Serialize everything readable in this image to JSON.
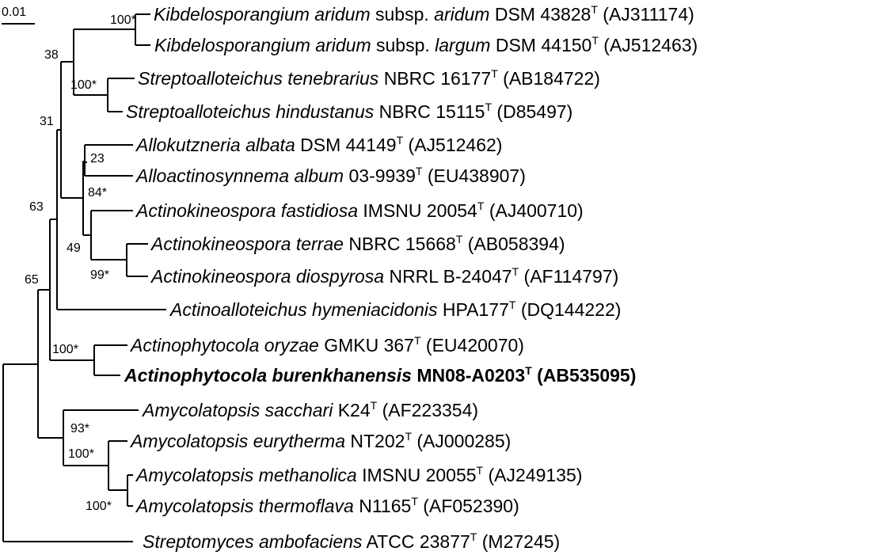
{
  "scale_bar": {
    "label": "0.01"
  },
  "taxa": [
    {
      "genus_species": "Kibdelosporangium aridum",
      "subsp_word": "subsp.",
      "subsp": "aridum",
      "strain": "DSM 43828",
      "type_mark": "T",
      "accession": "(AJ311174)",
      "bold": false
    },
    {
      "genus_species": "Kibdelosporangium aridum",
      "subsp_word": "subsp.",
      "subsp": "largum",
      "strain": "DSM 44150",
      "type_mark": "T",
      "accession": "(AJ512463)",
      "bold": false
    },
    {
      "genus_species": "Streptoalloteichus tenebrarius",
      "strain": "NBRC 16177",
      "type_mark": "T",
      "accession": "(AB184722)",
      "bold": false
    },
    {
      "genus_species": "Streptoalloteichus hindustanus",
      "strain": "NBRC 15115",
      "type_mark": "T",
      "accession": "(D85497)",
      "bold": false
    },
    {
      "genus_species": "Allokutzneria albata",
      "strain": "DSM 44149",
      "type_mark": "T",
      "accession": "(AJ512462)",
      "bold": false
    },
    {
      "genus_species": "Alloactinosynnema album",
      "strain": "03-9939",
      "type_mark": "T",
      "accession": "(EU438907)",
      "bold": false
    },
    {
      "genus_species": "Actinokineospora fastidiosa",
      "strain": "IMSNU 20054",
      "type_mark": "T",
      "accession": "(AJ400710)",
      "bold": false
    },
    {
      "genus_species": "Actinokineospora terrae",
      "strain": "NBRC 15668",
      "type_mark": "T",
      "accession": "(AB058394)",
      "bold": false
    },
    {
      "genus_species": "Actinokineospora diospyrosa",
      "strain": "NRRL B-24047",
      "type_mark": "T",
      "accession": "(AF114797)",
      "bold": false
    },
    {
      "genus_species": "Actinoalloteichus hymeniacidonis",
      "strain": "HPA177",
      "type_mark": "T",
      "accession": "(DQ144222)",
      "bold": false
    },
    {
      "genus_species": "Actinophytocola oryzae",
      "strain": "GMKU 367",
      "type_mark": "T",
      "accession": "(EU420070)",
      "bold": false
    },
    {
      "genus_species": "Actinophytocola burenkhanensis",
      "strain": "MN08-A0203",
      "type_mark": "T",
      "accession": "(AB535095)",
      "bold": true
    },
    {
      "genus_species": "Amycolatopsis sacchari",
      "strain": "K24",
      "type_mark": "T",
      "accession": "(AF223354)",
      "bold": false
    },
    {
      "genus_species": "Amycolatopsis eurytherma",
      "strain": "NT202",
      "type_mark": "T",
      "accession": "(AJ000285)",
      "bold": false
    },
    {
      "genus_species": "Amycolatopsis methanolica",
      "strain": "IMSNU 20055",
      "type_mark": "T",
      "accession": "(AJ249135)",
      "bold": false
    },
    {
      "genus_species": "Amycolatopsis thermoflava",
      "strain": "N1165",
      "type_mark": "T",
      "accession": "(AF052390)",
      "bold": false
    },
    {
      "genus_species": "Streptomyces ambofaciens",
      "strain": "ATCC 23877",
      "type_mark": "T",
      "accession": "(M27245)",
      "bold": false
    }
  ],
  "bootstrap": {
    "kibdelo": "100*",
    "kibdelo_strepto": "38",
    "strepto": "100*",
    "upper_clade": "31",
    "allokutz": "23",
    "allo_group": "84*",
    "actinokin": "49",
    "actinokin_pair": "99*",
    "big_clade": "63",
    "ingroup": "65",
    "actinophyto": "100*",
    "amyco_sacchari": "93*",
    "amyco_eury": "100*",
    "amyco_pair": "100*"
  }
}
